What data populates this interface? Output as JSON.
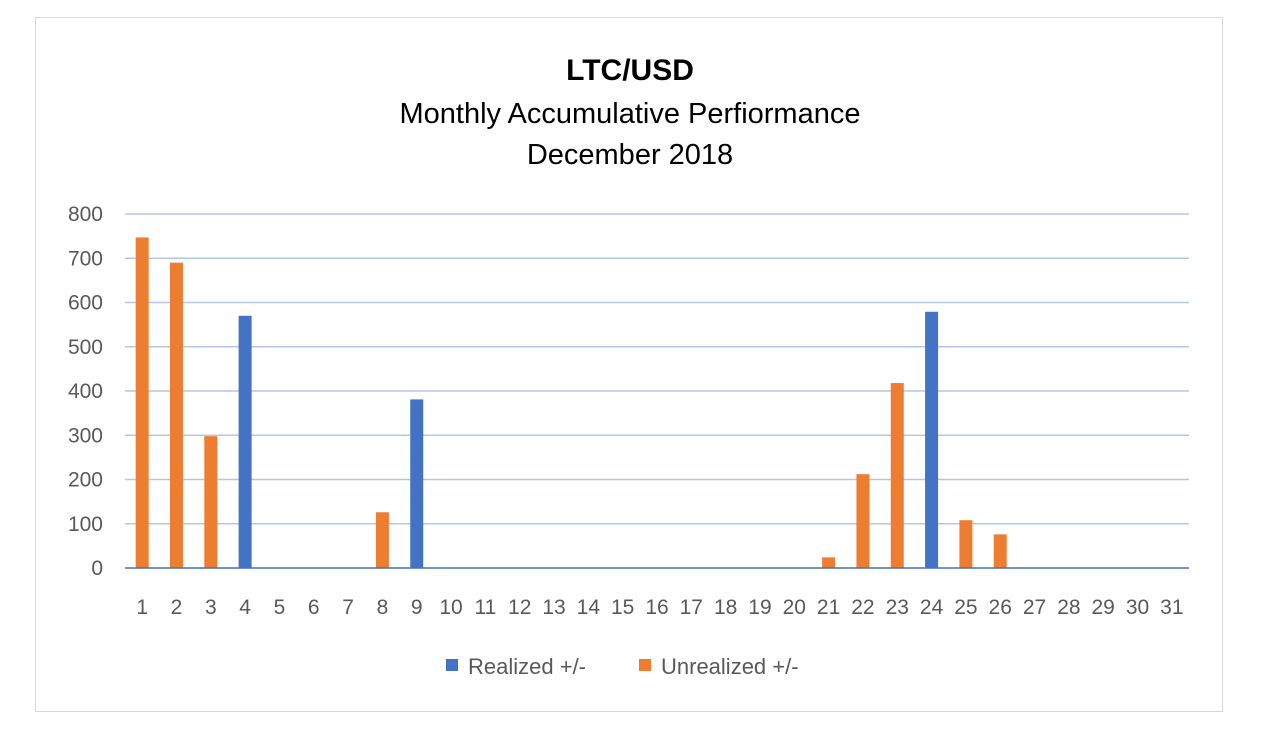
{
  "chart_data": {
    "type": "bar",
    "title": "LTC/USD",
    "subtitle_lines": [
      "Monthly Accumulative Perfiormance",
      "December 2018"
    ],
    "categories": [
      "1",
      "2",
      "3",
      "4",
      "5",
      "6",
      "7",
      "8",
      "9",
      "10",
      "11",
      "12",
      "13",
      "14",
      "15",
      "16",
      "17",
      "18",
      "19",
      "20",
      "21",
      "22",
      "23",
      "24",
      "25",
      "26",
      "27",
      "28",
      "29",
      "30",
      "31"
    ],
    "series": [
      {
        "name": "Realized +/-",
        "color": "#4472c4",
        "values": [
          0,
          0,
          0,
          570,
          0,
          0,
          0,
          0,
          381,
          0,
          0,
          0,
          0,
          0,
          0,
          0,
          0,
          0,
          0,
          0,
          0,
          0,
          0,
          579,
          0,
          0,
          0,
          0,
          0,
          0,
          0
        ]
      },
      {
        "name": "Unrealized +/-",
        "color": "#ed7d31",
        "values": [
          747,
          690,
          298,
          0,
          0,
          0,
          0,
          126,
          0,
          0,
          0,
          0,
          0,
          0,
          0,
          0,
          0,
          0,
          0,
          0,
          24,
          212,
          418,
          0,
          108,
          76,
          0,
          0,
          0,
          0,
          0
        ]
      }
    ],
    "ylim": [
      0,
      800
    ],
    "yticks": [
      0,
      100,
      200,
      300,
      400,
      500,
      600,
      700,
      800
    ],
    "grid": true,
    "legend_position": "bottom",
    "xlabel": "",
    "ylabel": ""
  }
}
